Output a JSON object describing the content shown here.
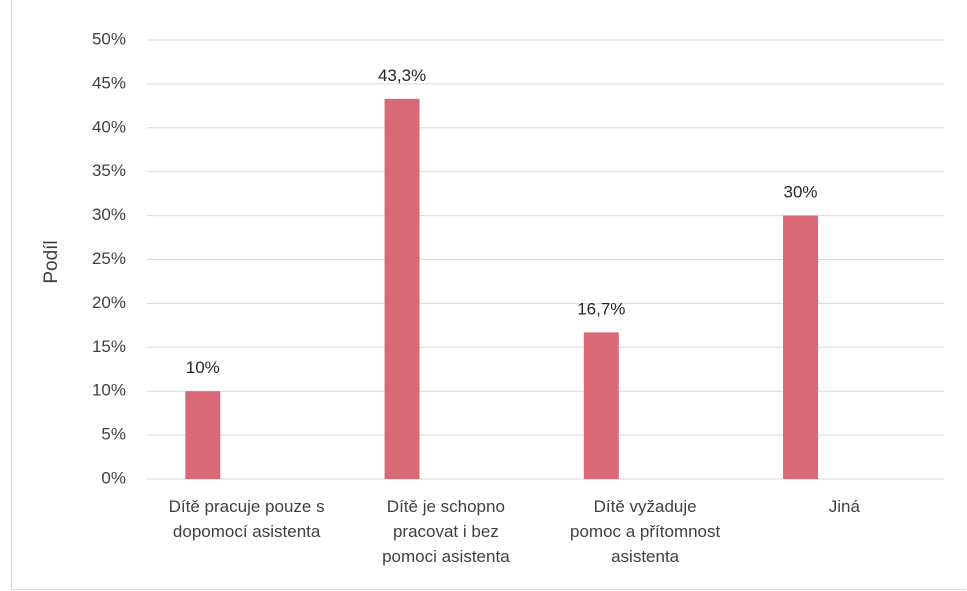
{
  "chart_data": {
    "type": "bar",
    "categories": [
      [
        "Dítě pracuje pouze s",
        "dopomocí asistenta"
      ],
      [
        "Dítě je schopno",
        "pracovat i bez",
        "pomoci asistenta"
      ],
      [
        "Dítě vyžaduje",
        "pomoc a přítomnost",
        "asistenta"
      ],
      [
        "Jiná"
      ]
    ],
    "values": [
      10,
      43.3,
      16.7,
      30
    ],
    "data_labels": [
      "10%",
      "43,3%",
      "16,7%",
      "30%"
    ],
    "ylabel": "Podíl",
    "ylim": [
      0,
      50
    ],
    "yticks": [
      "0%",
      "5%",
      "10%",
      "15%",
      "20%",
      "25%",
      "30%",
      "35%",
      "40%",
      "45%",
      "50%"
    ],
    "grid": true,
    "bar_color": "#d86a77",
    "grid_color": "#d9d9d9"
  }
}
